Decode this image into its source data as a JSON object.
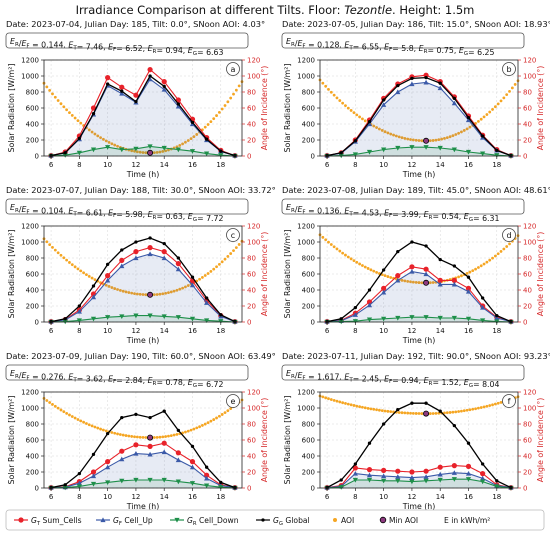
{
  "figure": {
    "title_prefix": "Irradiance Comparison at different Tilts. Floor: ",
    "title_floor": "Tezontle",
    "title_suffix": ". Height: 1.5m"
  },
  "axes_labels": {
    "ylabel_left": "Solar Radiation [W/m²]",
    "ylabel_right": "Angle of Incidence (°)",
    "xlabel": "Time (h)"
  },
  "colors": {
    "GT": "#e8222a",
    "GF": "#3b5aa8",
    "GR": "#1e8f4a",
    "GG": "#000000",
    "AOI": "#f5a623",
    "MinAOI": "#8e3a80",
    "axis_right": "#d62728"
  },
  "legend": [
    {
      "key": "GT",
      "label": "G_T Sum_Cells"
    },
    {
      "key": "GF",
      "label": "G_F Cell_Up"
    },
    {
      "key": "GR",
      "label": "G_R Cell_Down"
    },
    {
      "key": "GG",
      "label": "G_G Global"
    },
    {
      "key": "AOI",
      "label": "AOI"
    },
    {
      "key": "MinAOI",
      "label": "Min AOI"
    },
    {
      "key": "E",
      "label": "E in kWh/m²"
    }
  ],
  "chart_data": [
    {
      "type": "line",
      "panel": "a",
      "header": "Date: 2023-07-04, Julian Day: 185, Tilt: 0.0°, SNoon AOI: 4.03°",
      "stats": "E_R/E_F = 0.144.  E_T= 7.46, E_F= 6.52, E_R= 0.94, E_G= 6.63",
      "xlim": [
        5.5,
        19.5
      ],
      "ylim": [
        0,
        1200
      ],
      "y2lim": [
        0,
        120
      ],
      "xticks": [
        6,
        8,
        10,
        12,
        14,
        16,
        18
      ],
      "yticks": [
        0,
        200,
        400,
        600,
        800,
        1000,
        1200
      ],
      "y2ticks": [
        0,
        20,
        40,
        60,
        80,
        100,
        120
      ],
      "x": [
        6,
        7,
        8,
        9,
        10,
        11,
        12,
        13,
        14,
        15,
        16,
        17,
        18,
        19
      ],
      "series": [
        {
          "key": "GT",
          "values": [
            5,
            50,
            250,
            600,
            980,
            860,
            760,
            1080,
            930,
            700,
            460,
            230,
            70,
            5
          ]
        },
        {
          "key": "GF",
          "values": [
            5,
            40,
            210,
            520,
            880,
            780,
            670,
            960,
            830,
            620,
            400,
            200,
            60,
            5
          ]
        },
        {
          "key": "GR",
          "values": [
            0,
            10,
            40,
            80,
            110,
            80,
            90,
            120,
            100,
            80,
            60,
            30,
            10,
            0
          ]
        },
        {
          "key": "GG",
          "values": [
            5,
            40,
            220,
            530,
            900,
            810,
            680,
            1000,
            870,
            650,
            420,
            210,
            60,
            5
          ]
        }
      ],
      "aoi": {
        "start": 91,
        "end": 93,
        "min_x": 13.0,
        "min": 4
      },
      "min_marker": {
        "x": 13.0,
        "y": 4
      }
    },
    {
      "type": "line",
      "panel": "b",
      "header": "Date: 2023-07-05, Julian Day: 186, Tilt: 15.0°, SNoon AOI: 18.93°",
      "stats": "E_R/E_F = 0.128.  E_T= 6.55, E_F= 5.8, E_R= 0.75, E_G= 6.25",
      "xlim": [
        5.5,
        19.5
      ],
      "ylim": [
        0,
        1200
      ],
      "y2lim": [
        0,
        120
      ],
      "xticks": [
        6,
        8,
        10,
        12,
        14,
        16,
        18
      ],
      "yticks": [
        0,
        200,
        400,
        600,
        800,
        1000,
        1200
      ],
      "y2ticks": [
        0,
        20,
        40,
        60,
        80,
        100,
        120
      ],
      "x": [
        6,
        7,
        8,
        9,
        10,
        11,
        12,
        13,
        14,
        15,
        16,
        17,
        18,
        19
      ],
      "series": [
        {
          "key": "GT",
          "values": [
            5,
            40,
            200,
            450,
            720,
            900,
            990,
            1010,
            930,
            740,
            500,
            260,
            80,
            5
          ]
        },
        {
          "key": "GF",
          "values": [
            5,
            35,
            180,
            400,
            640,
            800,
            900,
            920,
            850,
            660,
            450,
            230,
            70,
            5
          ]
        },
        {
          "key": "GR",
          "values": [
            0,
            5,
            20,
            50,
            80,
            100,
            110,
            110,
            100,
            80,
            50,
            30,
            10,
            0
          ]
        },
        {
          "key": "GG",
          "values": [
            5,
            40,
            190,
            430,
            700,
            880,
            970,
            980,
            910,
            720,
            480,
            250,
            70,
            5
          ]
        }
      ],
      "aoi": {
        "start": 95,
        "end": 94,
        "min_x": 13.0,
        "min": 19
      },
      "min_marker": {
        "x": 13.0,
        "y": 19
      }
    },
    {
      "type": "line",
      "panel": "c",
      "header": "Date: 2023-07-07, Julian Day: 188, Tilt: 30.0°, SNoon AOI: 33.72°",
      "stats": "E_R/E_F = 0.104.  E_T= 6.61, E_F= 5.98, E_R= 0.63, E_G= 7.72",
      "xlim": [
        5.5,
        19.5
      ],
      "ylim": [
        0,
        1200
      ],
      "y2lim": [
        0,
        120
      ],
      "xticks": [
        6,
        8,
        10,
        12,
        14,
        16,
        18
      ],
      "yticks": [
        0,
        200,
        400,
        600,
        800,
        1000,
        1200
      ],
      "y2ticks": [
        0,
        20,
        40,
        60,
        80,
        100,
        120
      ],
      "x": [
        6,
        7,
        8,
        9,
        10,
        11,
        12,
        13,
        14,
        15,
        16,
        17,
        18,
        19
      ],
      "series": [
        {
          "key": "GT",
          "values": [
            5,
            30,
            150,
            350,
            580,
            770,
            880,
            930,
            880,
            730,
            510,
            270,
            80,
            5
          ]
        },
        {
          "key": "GF",
          "values": [
            5,
            25,
            130,
            310,
            520,
            700,
            800,
            850,
            800,
            660,
            460,
            240,
            70,
            5
          ]
        },
        {
          "key": "GR",
          "values": [
            0,
            5,
            20,
            40,
            60,
            70,
            80,
            80,
            70,
            60,
            40,
            20,
            10,
            0
          ]
        },
        {
          "key": "GG",
          "values": [
            5,
            40,
            200,
            450,
            720,
            900,
            1000,
            1050,
            980,
            800,
            560,
            300,
            90,
            5
          ]
        }
      ],
      "aoi": {
        "start": 104,
        "end": 101,
        "min_x": 13.0,
        "min": 34
      },
      "min_marker": {
        "x": 13.0,
        "y": 34
      }
    },
    {
      "type": "line",
      "panel": "d",
      "header": "Date: 2023-07-08, Julian Day: 189, Tilt: 45.0°, SNoon AOI: 48.61°",
      "stats": "E_R/E_F = 0.136.  E_T= 4.53, E_F= 3.99, E_R= 0.54, E_G= 6.31",
      "xlim": [
        5.5,
        19.5
      ],
      "ylim": [
        0,
        1200
      ],
      "y2lim": [
        0,
        120
      ],
      "xticks": [
        6,
        8,
        10,
        12,
        14,
        16,
        18
      ],
      "yticks": [
        0,
        200,
        400,
        600,
        800,
        1000,
        1200
      ],
      "y2ticks": [
        0,
        20,
        40,
        60,
        80,
        100,
        120
      ],
      "x": [
        6,
        7,
        8,
        9,
        10,
        11,
        12,
        13,
        14,
        15,
        16,
        17,
        18,
        19
      ],
      "series": [
        {
          "key": "GT",
          "values": [
            5,
            20,
            110,
            250,
            420,
            580,
            690,
            660,
            520,
            520,
            420,
            200,
            60,
            5
          ]
        },
        {
          "key": "GF",
          "values": [
            5,
            15,
            90,
            210,
            370,
            520,
            630,
            600,
            470,
            470,
            380,
            180,
            50,
            5
          ]
        },
        {
          "key": "GR",
          "values": [
            0,
            5,
            10,
            30,
            40,
            50,
            60,
            60,
            50,
            50,
            40,
            20,
            5,
            0
          ]
        },
        {
          "key": "GG",
          "values": [
            5,
            40,
            180,
            400,
            650,
            880,
            1000,
            950,
            780,
            700,
            560,
            300,
            80,
            5
          ]
        }
      ],
      "aoi": {
        "start": 109,
        "end": 108,
        "min_x": 13.0,
        "min": 49
      },
      "min_marker": {
        "x": 13.0,
        "y": 49
      }
    },
    {
      "type": "line",
      "panel": "e",
      "header": "Date: 2023-07-09, Julian Day: 190, Tilt: 60.0°, SNoon AOI: 63.49°",
      "stats": "E_R/E_F = 0.276.  E_T= 3.62, E_F= 2.84, E_R= 0.78, E_G= 6.72",
      "xlim": [
        5.5,
        19.5
      ],
      "ylim": [
        0,
        1200
      ],
      "y2lim": [
        0,
        120
      ],
      "xticks": [
        6,
        8,
        10,
        12,
        14,
        16,
        18
      ],
      "yticks": [
        0,
        200,
        400,
        600,
        800,
        1000,
        1200
      ],
      "y2ticks": [
        0,
        20,
        40,
        60,
        80,
        100,
        120
      ],
      "x": [
        6,
        7,
        8,
        9,
        10,
        11,
        12,
        13,
        14,
        15,
        16,
        17,
        18,
        19
      ],
      "series": [
        {
          "key": "GT",
          "values": [
            5,
            15,
            80,
            200,
            330,
            460,
            540,
            520,
            560,
            440,
            330,
            160,
            40,
            5
          ]
        },
        {
          "key": "GF",
          "values": [
            5,
            10,
            60,
            150,
            260,
            360,
            430,
            420,
            450,
            350,
            260,
            120,
            30,
            5
          ]
        },
        {
          "key": "GR",
          "values": [
            0,
            5,
            20,
            50,
            70,
            90,
            100,
            100,
            100,
            80,
            60,
            30,
            10,
            0
          ]
        },
        {
          "key": "GG",
          "values": [
            5,
            40,
            180,
            420,
            680,
            880,
            920,
            880,
            960,
            720,
            520,
            260,
            70,
            5
          ]
        }
      ],
      "aoi": {
        "start": 112,
        "end": 110,
        "min_x": 13.0,
        "min": 63
      },
      "min_marker": {
        "x": 13.0,
        "y": 63
      }
    },
    {
      "type": "line",
      "panel": "f",
      "header": "Date: 2023-07-11, Julian Day: 192, Tilt: 90.0°, SNoon AOI: 93.23°",
      "stats": "E_R/E_F = 1.617.  E_T= 2.45, E_F= 0.94, E_R= 1.52, E_G= 8.04",
      "xlim": [
        5.5,
        19.5
      ],
      "ylim": [
        0,
        1200
      ],
      "y2lim": [
        0,
        120
      ],
      "xticks": [
        6,
        8,
        10,
        12,
        14,
        16,
        18
      ],
      "yticks": [
        0,
        200,
        400,
        600,
        800,
        1000,
        1200
      ],
      "y2ticks": [
        0,
        20,
        40,
        60,
        80,
        100,
        120
      ],
      "x": [
        6,
        7,
        8,
        9,
        10,
        11,
        12,
        13,
        14,
        15,
        16,
        17,
        18,
        19
      ],
      "series": [
        {
          "key": "GT",
          "values": [
            5,
            30,
            250,
            230,
            220,
            210,
            200,
            210,
            260,
            280,
            270,
            180,
            40,
            5
          ]
        },
        {
          "key": "GF",
          "values": [
            5,
            20,
            180,
            160,
            150,
            140,
            130,
            140,
            170,
            190,
            180,
            120,
            30,
            5
          ]
        },
        {
          "key": "GR",
          "values": [
            0,
            10,
            100,
            100,
            90,
            90,
            80,
            90,
            100,
            110,
            110,
            80,
            20,
            0
          ]
        },
        {
          "key": "GG",
          "values": [
            5,
            100,
            300,
            560,
            800,
            980,
            1060,
            1060,
            960,
            780,
            560,
            300,
            90,
            5
          ]
        }
      ],
      "aoi": {
        "start": 115,
        "end": 114,
        "min_x": 13.0,
        "min": 93
      },
      "min_marker": {
        "x": 13.0,
        "y": 93
      }
    }
  ]
}
